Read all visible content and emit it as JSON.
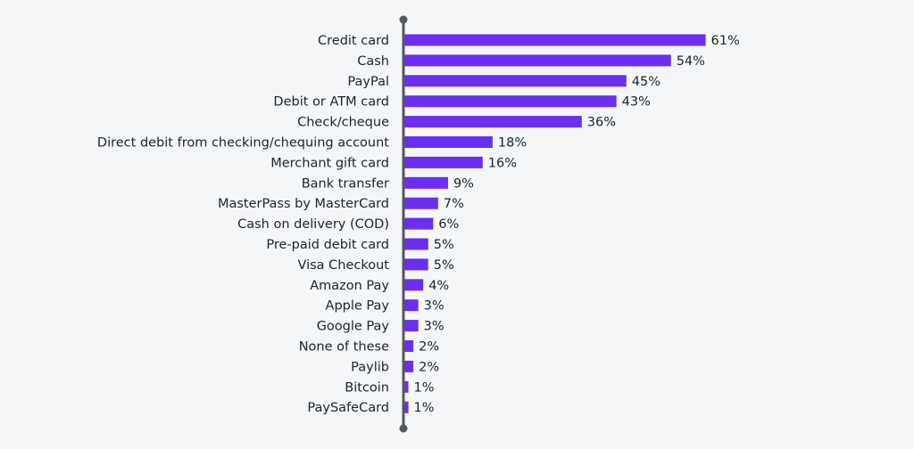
{
  "chart_data": {
    "type": "bar",
    "orientation": "horizontal",
    "categories": [
      "Credit card",
      "Cash",
      "PayPal",
      "Debit or ATM card",
      "Check/cheque",
      "Direct debit from checking/chequing account",
      "Merchant gift card",
      "Bank transfer",
      "MasterPass by MasterCard",
      "Cash on delivery (COD)",
      "Pre-paid debit card",
      "Visa Checkout",
      "Amazon Pay",
      "Apple Pay",
      "Google Pay",
      "None of these",
      "Paylib",
      "Bitcoin",
      "PaySafeCard"
    ],
    "values": [
      61,
      54,
      45,
      43,
      36,
      18,
      16,
      9,
      7,
      6,
      5,
      5,
      4,
      3,
      3,
      2,
      2,
      1,
      1
    ],
    "value_labels": [
      "61%",
      "54%",
      "45%",
      "43%",
      "36%",
      "18%",
      "16%",
      "9%",
      "7%",
      "6%",
      "5%",
      "5%",
      "4%",
      "3%",
      "3%",
      "2%",
      "2%",
      "1%",
      "1%"
    ],
    "value_suffix": "%",
    "title": "",
    "xlabel": "",
    "ylabel": "",
    "xlim": [
      0,
      61
    ],
    "grid": false,
    "legend": "none",
    "colors": {
      "bar": "#6a2ff0",
      "axis": "#55585e",
      "label": "#1f2328",
      "background": "#f4f6f8"
    }
  }
}
